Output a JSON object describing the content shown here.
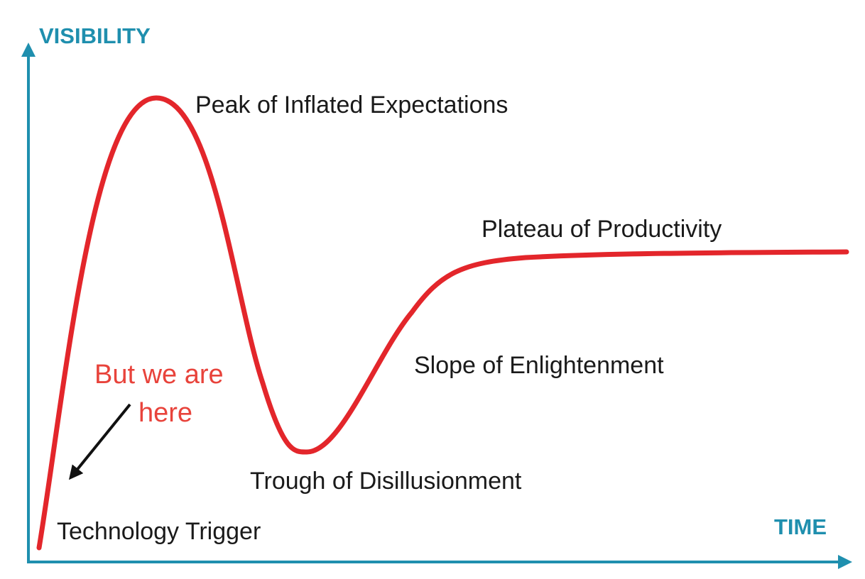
{
  "axes": {
    "y_label": "VISIBILITY",
    "x_label": "TIME"
  },
  "phases": [
    "Technology Trigger",
    "Peak of Inflated Expectations",
    "Trough of Disillusionment",
    "Slope of Enlightenment",
    "Plateau of Productivity"
  ],
  "annotation": {
    "lines": [
      "But we are",
      "here"
    ]
  }
}
